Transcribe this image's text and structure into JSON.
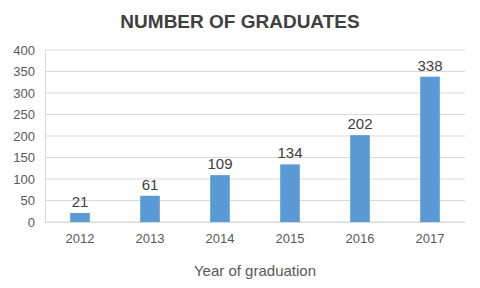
{
  "chart_data": {
    "type": "bar",
    "title": "NUMBER OF GRADUATES",
    "x_label": "Year of graduation",
    "categories": [
      "2012",
      "2013",
      "2014",
      "2015",
      "2016",
      "2017"
    ],
    "values": [
      21,
      61,
      109,
      134,
      202,
      338
    ],
    "color": "#5b9bd5",
    "ylim": [
      0,
      400
    ],
    "yticks": [
      0,
      50,
      100,
      150,
      200,
      250,
      300,
      350,
      400
    ],
    "grid": true,
    "data_labels": true
  }
}
